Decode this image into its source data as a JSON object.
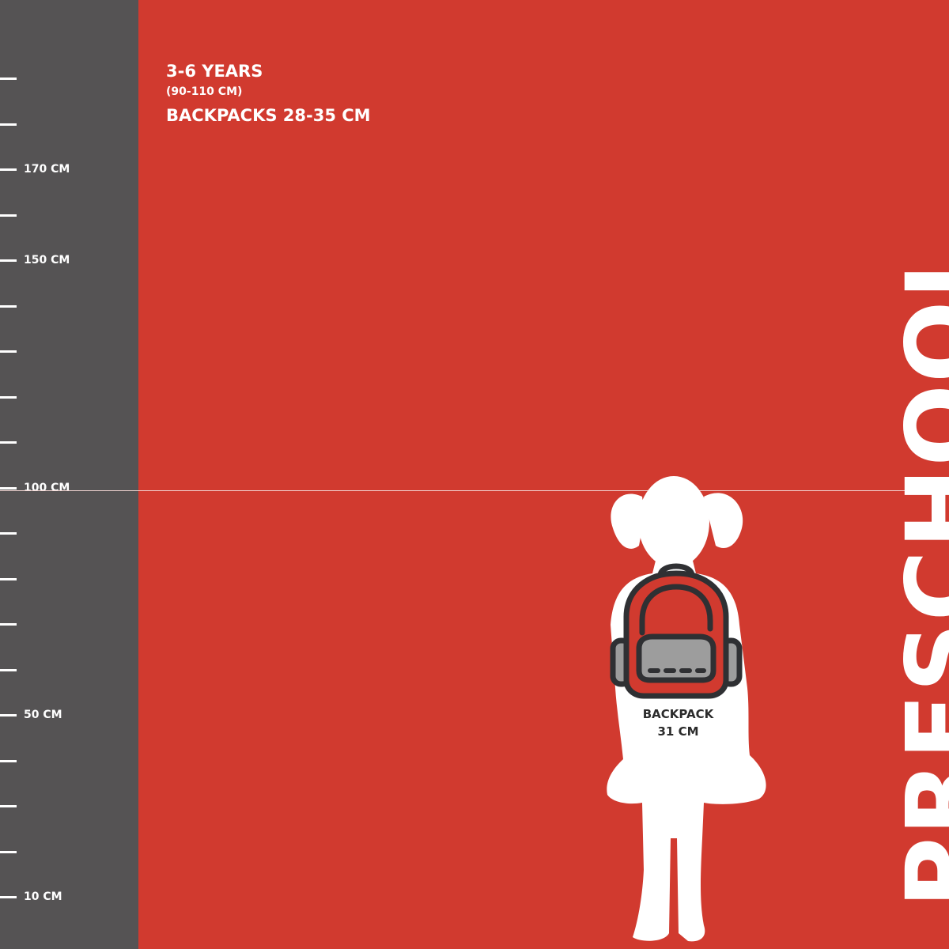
{
  "ruler": {
    "ticks": [
      {
        "label": ""
      },
      {
        "label": ""
      },
      {
        "label": "170 CM"
      },
      {
        "label": ""
      },
      {
        "label": "150 CM"
      },
      {
        "label": ""
      },
      {
        "label": ""
      },
      {
        "label": ""
      },
      {
        "label": ""
      },
      {
        "label": "100 CM"
      },
      {
        "label": ""
      },
      {
        "label": ""
      },
      {
        "label": ""
      },
      {
        "label": ""
      },
      {
        "label": "50 CM"
      },
      {
        "label": ""
      },
      {
        "label": ""
      },
      {
        "label": ""
      },
      {
        "label": "10 CM"
      }
    ]
  },
  "header": {
    "age": "3-6 YEARS",
    "height_range": "(90-110 CM)",
    "backpack_range": "BACKPACKS 28-35 CM"
  },
  "category": "PRESCHOOL",
  "backpack": {
    "label": "BACKPACK",
    "size": "31 CM"
  },
  "colors": {
    "background": "#d13a2f",
    "ruler": "#555354",
    "text": "#ffffff",
    "backpack_outline": "#2f3033",
    "backpack_pocket": "#9d9d9d"
  }
}
